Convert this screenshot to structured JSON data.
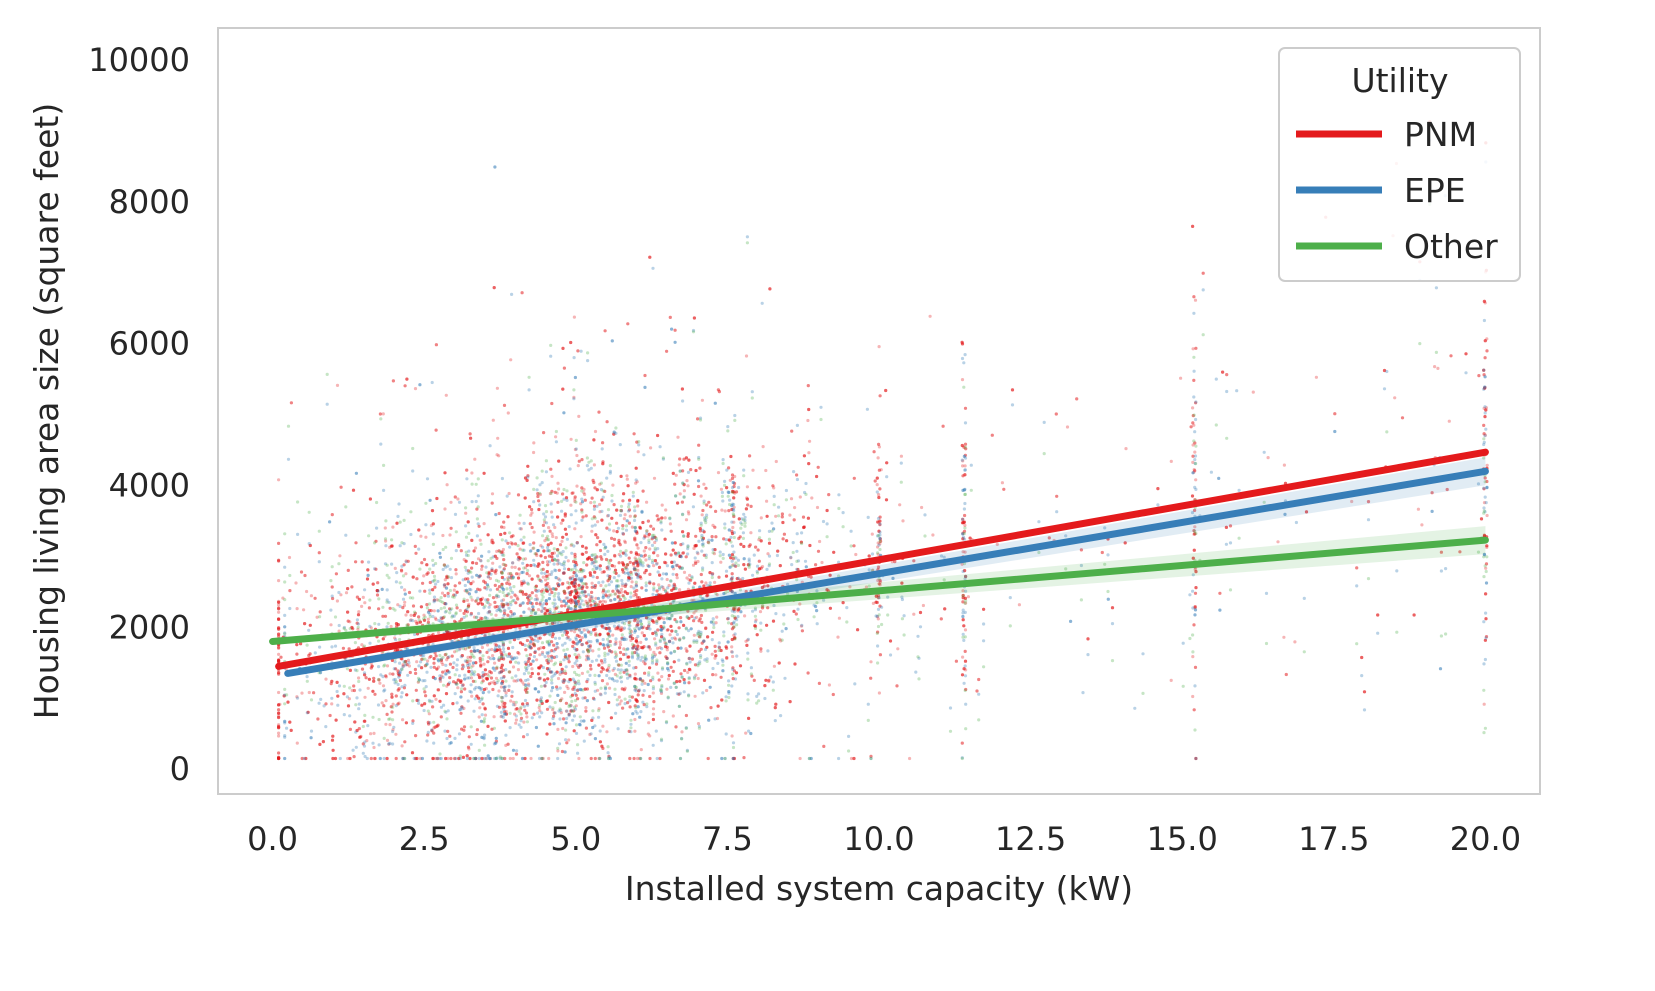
{
  "chart_data": {
    "type": "scatter",
    "title": "",
    "xlabel": "Installed system capacity (kW)",
    "ylabel": "Housing living area size (square feet)",
    "xlim": [
      -0.9,
      20.9
    ],
    "ylim": [
      -350,
      10450
    ],
    "x_ticks": [
      "0.0",
      "2.5",
      "5.0",
      "7.5",
      "10.0",
      "12.5",
      "15.0",
      "17.5",
      "20.0"
    ],
    "y_ticks": [
      "0",
      "2000",
      "4000",
      "6000",
      "8000",
      "10000"
    ],
    "grid": false,
    "legend": {
      "title": "Utility",
      "placement": "top-right"
    },
    "series": [
      {
        "name": "PNM",
        "color": "#e41a1c",
        "fit_line": {
          "x": [
            0.1,
            20.0
          ],
          "y": [
            1450,
            4470
          ]
        },
        "confidence_band": false
      },
      {
        "name": "EPE",
        "color": "#377eb8",
        "fit_line": {
          "x": [
            0.25,
            20.0
          ],
          "y": [
            1350,
            4200
          ]
        },
        "confidence_band": true
      },
      {
        "name": "Other",
        "color": "#4daf4a",
        "fit_line": {
          "x": [
            0.0,
            20.0
          ],
          "y": [
            1800,
            3230
          ]
        },
        "confidence_band": true
      }
    ]
  }
}
